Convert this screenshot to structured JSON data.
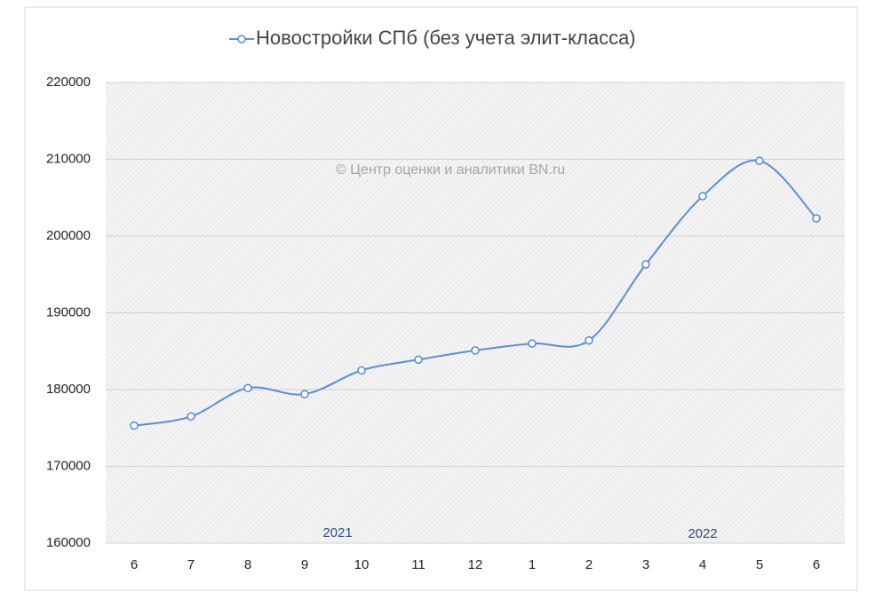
{
  "chart_data": {
    "type": "line",
    "categories": [
      "6",
      "7",
      "8",
      "9",
      "10",
      "11",
      "12",
      "1",
      "2",
      "3",
      "4",
      "5",
      "6"
    ],
    "series": [
      {
        "name": "Новостройки СПб (без учета элит-класса)",
        "color": "#5b8fd4",
        "values": [
          175300,
          176500,
          180200,
          179400,
          182500,
          183900,
          185100,
          186000,
          186400,
          196300,
          205200,
          209800,
          202300
        ]
      }
    ],
    "ylim": [
      160000,
      220000
    ],
    "yticks": [
      160000,
      170000,
      180000,
      190000,
      200000,
      210000,
      220000
    ],
    "grid": true,
    "smooth": true,
    "legend": "top",
    "annotations": [
      "© Центр оценки и аналитики BN.ru",
      "2021",
      "2022"
    ]
  }
}
